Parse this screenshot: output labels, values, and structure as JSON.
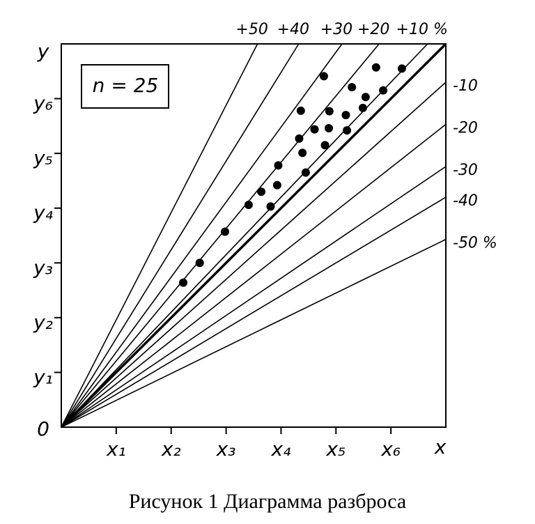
{
  "chart_data": {
    "type": "scatter",
    "caption": "Рисунок 1 Диаграмма разброса",
    "annotation": "n = 25",
    "xlabel": "x",
    "ylabel": "y",
    "xlim": [
      0,
      7
    ],
    "ylim": [
      0,
      7
    ],
    "xticks": [
      {
        "value": 1,
        "label": "x₁"
      },
      {
        "value": 2,
        "label": "x₂"
      },
      {
        "value": 3,
        "label": "x₃"
      },
      {
        "value": 4,
        "label": "x₄"
      },
      {
        "value": 5,
        "label": "x₅"
      },
      {
        "value": 6,
        "label": "x₆"
      }
    ],
    "yticks": [
      0,
      {
        "value": 1,
        "label": "y₁"
      },
      {
        "value": 2,
        "label": "y₂"
      },
      {
        "value": 3,
        "label": "y₃"
      },
      {
        "value": 4,
        "label": "y₄"
      },
      {
        "value": 5,
        "label": "y₅"
      },
      {
        "value": 6,
        "label": "y₆"
      }
    ],
    "diagonal_slope": 1,
    "rays": [
      {
        "label": "+50",
        "slope": 1.96
      },
      {
        "label": "+40",
        "slope": 1.62
      },
      {
        "label": "+30",
        "slope": 1.37
      },
      {
        "label": "+20",
        "slope": 1.21
      },
      {
        "label": "+10 %",
        "slope": 1.05
      },
      {
        "label": "-10",
        "slope": 0.9
      },
      {
        "label": "-20",
        "slope": 0.79
      },
      {
        "label": "-30",
        "slope": 0.68
      },
      {
        "label": "-40",
        "slope": 0.6
      },
      {
        "label": "-50 %",
        "slope": 0.49
      }
    ],
    "color": "#000000",
    "x": [
      4.78,
      5.73,
      6.2,
      5.29,
      5.86,
      4.36,
      4.88,
      5.54,
      5.18,
      5.49,
      4.61,
      4.87,
      4.33,
      5.2,
      4.8,
      4.39,
      3.95,
      4.45,
      3.93,
      3.64,
      3.41,
      3.81,
      2.98,
      2.52,
      2.22
    ],
    "values": [
      6.41,
      6.57,
      6.55,
      6.21,
      6.15,
      5.78,
      5.77,
      6.03,
      5.7,
      5.83,
      5.44,
      5.46,
      5.27,
      5.42,
      5.15,
      5.01,
      4.78,
      4.65,
      4.42,
      4.3,
      4.06,
      4.03,
      3.57,
      3.0,
      2.64
    ]
  }
}
